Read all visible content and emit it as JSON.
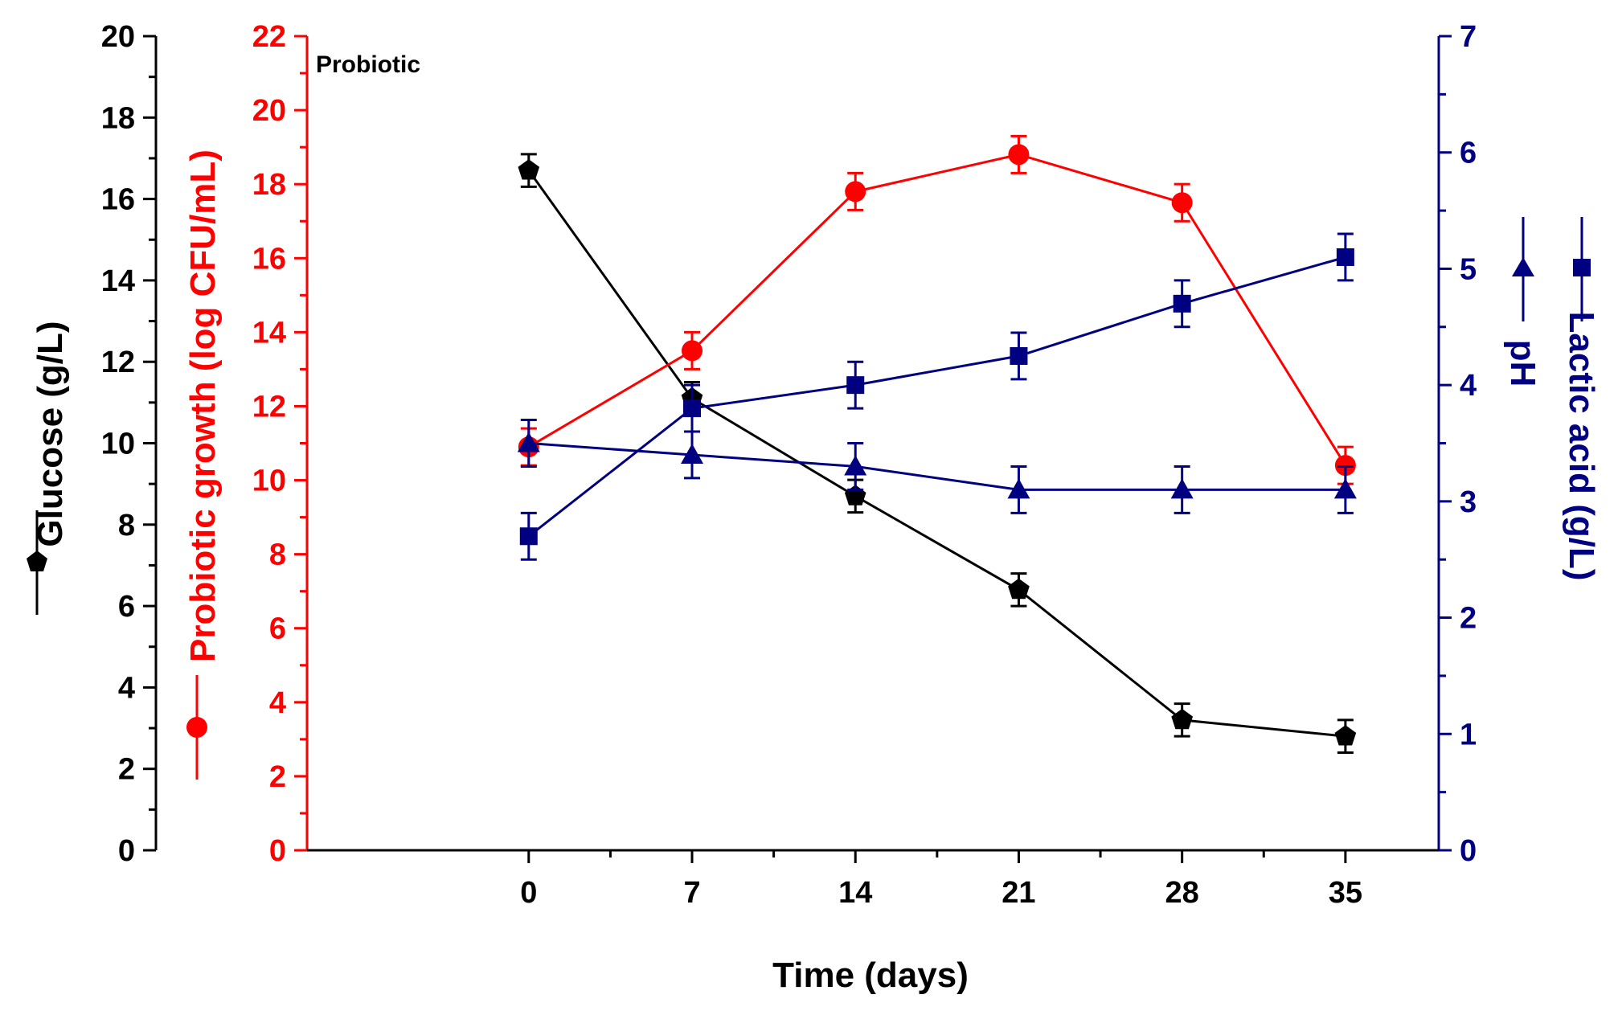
{
  "chart_data": {
    "type": "line",
    "panel_label": "Probiotic",
    "x": [
      0,
      7,
      14,
      21,
      28,
      35
    ],
    "xlabel": "Time (days)",
    "xticks": [
      "0",
      "7",
      "14",
      "21",
      "28",
      "35"
    ],
    "xlim": [
      -9.5,
      39
    ],
    "axes": {
      "glucose": {
        "label": "Glucose (g/L)",
        "range": [
          0,
          20
        ],
        "ticks": [
          "0",
          "2",
          "4",
          "6",
          "8",
          "10",
          "12",
          "14",
          "16",
          "18",
          "20"
        ],
        "color": "#000000"
      },
      "growth": {
        "label": "Probiotic growth (log CFU/mL)",
        "range": [
          0,
          22
        ],
        "ticks": [
          "0",
          "2",
          "4",
          "6",
          "8",
          "10",
          "12",
          "14",
          "16",
          "18",
          "20",
          "22"
        ],
        "color": "#ff0000"
      },
      "right": {
        "label_lactic": "Lactic acid (g/L)",
        "label_ph": "pH",
        "range": [
          0,
          7
        ],
        "ticks": [
          "0",
          "1",
          "2",
          "3",
          "4",
          "5",
          "6",
          "7"
        ],
        "color": "#000080"
      }
    },
    "series": [
      {
        "axis": "glucose",
        "color": "#000000",
        "marker": "pentagon",
        "values": [
          16.7,
          11.1,
          8.7,
          6.4,
          3.2,
          2.8
        ],
        "errors": [
          0.4,
          0.4,
          0.4,
          0.4,
          0.4,
          0.4
        ]
      },
      {
        "axis": "growth",
        "color": "#ff0000",
        "marker": "circle",
        "values": [
          10.9,
          13.5,
          17.8,
          18.8,
          17.5,
          10.4
        ],
        "errors": [
          0.5,
          0.5,
          0.5,
          0.5,
          0.5,
          0.5
        ]
      },
      {
        "axis": "right",
        "color": "#000080",
        "marker": "square",
        "values": [
          2.7,
          3.8,
          4.0,
          4.25,
          4.7,
          5.1
        ],
        "errors": [
          0.2,
          0.2,
          0.2,
          0.2,
          0.2,
          0.2
        ]
      },
      {
        "axis": "right",
        "color": "#000080",
        "marker": "triangle",
        "values": [
          3.5,
          3.4,
          3.3,
          3.1,
          3.1,
          3.1
        ],
        "errors": [
          0.2,
          0.2,
          0.2,
          0.2,
          0.2,
          0.2
        ]
      }
    ],
    "grid": false
  }
}
